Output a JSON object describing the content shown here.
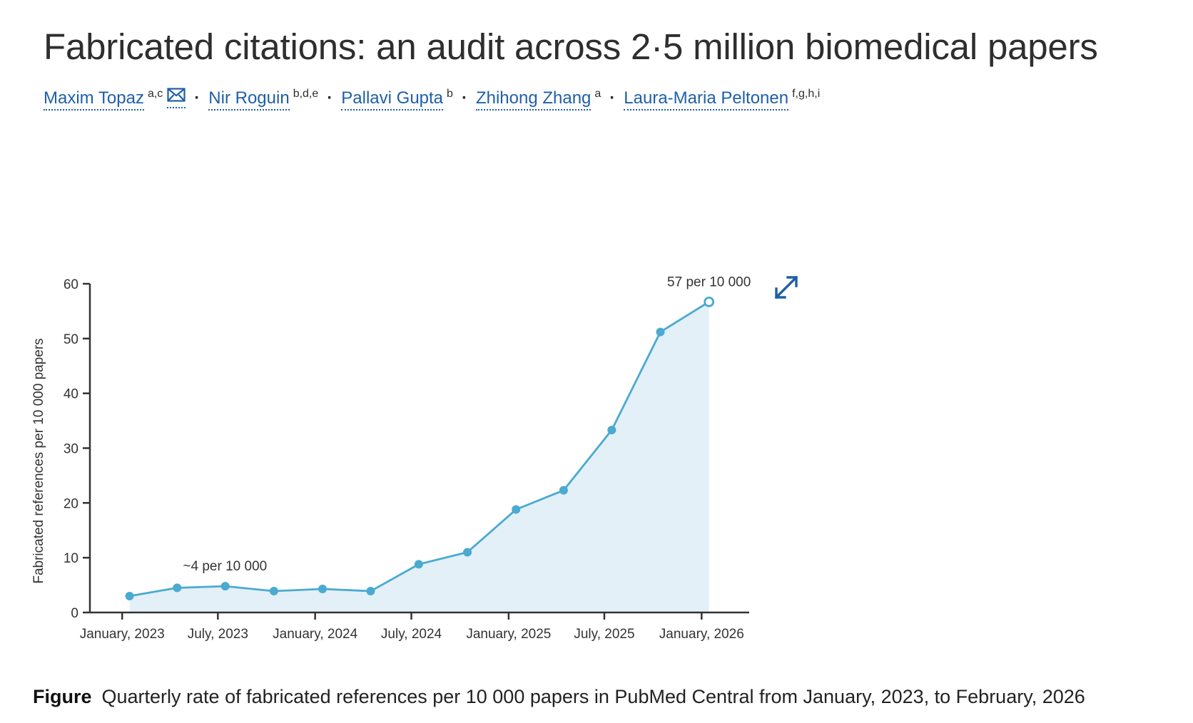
{
  "title": "Fabricated citations: an audit across 2·5 million biomedical papers",
  "authors": [
    {
      "name": "Maxim Topaz",
      "affiliations": "a,c",
      "has_email": true
    },
    {
      "name": "Nir Roguin",
      "affiliations": "b,d,e"
    },
    {
      "name": "Pallavi Gupta",
      "affiliations": "b"
    },
    {
      "name": "Zhihong Zhang",
      "affiliations": "a"
    },
    {
      "name": "Laura-Maria Peltonen",
      "affiliations": "f,g,h,i"
    }
  ],
  "author_separator": "·",
  "icons": {
    "email": "mail-icon",
    "expand": "expand-icon"
  },
  "colors": {
    "link": "#1f5fa8",
    "line": "#4aaad0",
    "fill": "#e3f0f8",
    "axis": "#333333"
  },
  "chart_data": {
    "type": "area",
    "ylabel": "Fabricated references per 10 000 papers",
    "xlabel": "",
    "ylim": [
      0,
      60
    ],
    "yticks": [
      0,
      10,
      20,
      30,
      40,
      50,
      60
    ],
    "xlim": [
      "2022-11-01",
      "2026-04-01"
    ],
    "xticks": [
      {
        "date": "2023-01-01",
        "label": "January, 2023"
      },
      {
        "date": "2023-07-01",
        "label": "July, 2023"
      },
      {
        "date": "2024-01-01",
        "label": "January, 2024"
      },
      {
        "date": "2024-07-01",
        "label": "July, 2024"
      },
      {
        "date": "2025-01-01",
        "label": "January, 2025"
      },
      {
        "date": "2025-07-01",
        "label": "July, 2025"
      },
      {
        "date": "2026-01-01",
        "label": "January, 2026"
      }
    ],
    "grid": false,
    "points": [
      {
        "x": "2023-01-15",
        "y": 3.0
      },
      {
        "x": "2023-04-15",
        "y": 4.5
      },
      {
        "x": "2023-07-15",
        "y": 4.8
      },
      {
        "x": "2023-10-15",
        "y": 3.9
      },
      {
        "x": "2024-01-15",
        "y": 4.3
      },
      {
        "x": "2024-04-15",
        "y": 3.9
      },
      {
        "x": "2024-07-15",
        "y": 8.8
      },
      {
        "x": "2024-10-15",
        "y": 11.0
      },
      {
        "x": "2025-01-15",
        "y": 18.8
      },
      {
        "x": "2025-04-15",
        "y": 22.3
      },
      {
        "x": "2025-07-15",
        "y": 33.3
      },
      {
        "x": "2025-10-15",
        "y": 51.2
      },
      {
        "x": "2026-01-15",
        "y": 56.7,
        "open": true
      }
    ],
    "annotations": [
      {
        "text": "~4 per 10 000",
        "x": "2023-07-01",
        "y": 4.8
      },
      {
        "text": "57 per 10 000",
        "x": "2026-01-15",
        "y": 56.7
      }
    ]
  },
  "caption": {
    "label": "Figure",
    "text": "Quarterly rate of fabricated references per 10 000 papers in PubMed Central from January, 2023, to February, 2026"
  }
}
